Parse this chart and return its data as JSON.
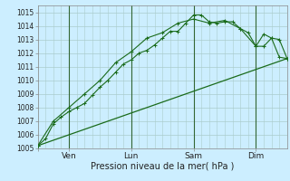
{
  "xlabel": "Pression niveau de la mer( hPa )",
  "bg_color": "#cceeff",
  "grid_color": "#aacccc",
  "line_color": "#1a6b1a",
  "vline_color": "#336633",
  "ylim": [
    1005,
    1015.5
  ],
  "xlim": [
    0,
    64
  ],
  "yticks": [
    1005,
    1006,
    1007,
    1008,
    1009,
    1010,
    1011,
    1012,
    1013,
    1014,
    1015
  ],
  "x_day_positions": [
    0,
    8,
    24,
    40,
    56
  ],
  "x_day_labels": [
    "",
    "Ven",
    "Lun",
    "Sam",
    "Dim"
  ],
  "vlines": [
    8,
    24,
    40,
    56
  ],
  "series1_x": [
    0,
    2,
    4,
    6,
    8,
    10,
    12,
    14,
    16,
    18,
    20,
    22,
    24,
    26,
    28,
    30,
    32,
    34,
    36,
    38,
    40,
    42,
    44,
    46,
    48,
    50,
    52,
    54,
    56,
    58,
    60,
    62,
    64
  ],
  "series1_y": [
    1005.2,
    1005.7,
    1006.8,
    1007.3,
    1007.7,
    1008.0,
    1008.3,
    1008.9,
    1009.5,
    1010.0,
    1010.6,
    1011.2,
    1011.5,
    1012.0,
    1012.2,
    1012.6,
    1013.1,
    1013.6,
    1013.6,
    1014.2,
    1014.8,
    1014.8,
    1014.3,
    1014.2,
    1014.3,
    1014.3,
    1013.8,
    1013.5,
    1012.5,
    1013.4,
    1013.1,
    1011.7,
    1011.6
  ],
  "series2_x": [
    0,
    4,
    8,
    12,
    16,
    20,
    24,
    28,
    32,
    36,
    40,
    44,
    48,
    52,
    56,
    58,
    60,
    62,
    64
  ],
  "series2_y": [
    1005.2,
    1007.0,
    1008.0,
    1009.0,
    1010.0,
    1011.3,
    1012.1,
    1013.1,
    1013.5,
    1014.2,
    1014.5,
    1014.2,
    1014.4,
    1013.8,
    1012.5,
    1012.5,
    1013.1,
    1013.0,
    1011.6
  ],
  "series3_x": [
    0,
    64
  ],
  "series3_y": [
    1005.2,
    1011.6
  ],
  "xlabel_fontsize": 7,
  "ytick_fontsize": 5.5,
  "xtick_fontsize": 6.5
}
